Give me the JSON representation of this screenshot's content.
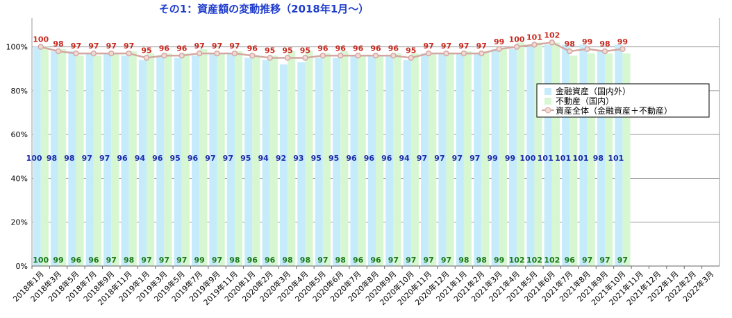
{
  "chart_data": {
    "type": "bar",
    "title": "その1：資産額の変動推移（2018年1月〜）",
    "ylim": [
      0,
      110
    ],
    "ytick_values": [
      0,
      20,
      40,
      60,
      80,
      100
    ],
    "ytick_labels": [
      "0%",
      "20%",
      "40%",
      "60%",
      "80%",
      "100%"
    ],
    "grid": true,
    "legend_position": "right",
    "categories": [
      "2018年1月",
      "2018年3月",
      "2018年5月",
      "2018年7月",
      "2018年9月",
      "2018年11月",
      "2019年1月",
      "2019年3月",
      "2019年5月",
      "2019年7月",
      "2019年9月",
      "2019年11月",
      "2020年1月",
      "2020年2月",
      "2020年3月",
      "2020年4月",
      "2020年5月",
      "2020年6月",
      "2020年7月",
      "2020年8月",
      "2020年9月",
      "2020年10月",
      "2020年11月",
      "2020年12月",
      "2021年1月",
      "2021年2月",
      "2021年3月",
      "2021年4月",
      "2021年5月",
      "2021年6月",
      "2021年7月",
      "2021年8月",
      "2021年9月",
      "2021年10月",
      "2021年11月",
      "2021年12月",
      "2022年1月",
      "2022年2月",
      "2022年3月"
    ],
    "series": [
      {
        "name": "金融資産（国内外）",
        "kind": "bar",
        "color": "#c6ecfb",
        "values": [
          100,
          98,
          98,
          97,
          97,
          96,
          94,
          96,
          95,
          96,
          97,
          97,
          95,
          94,
          92,
          93,
          95,
          95,
          96,
          96,
          96,
          94,
          97,
          97,
          97,
          97,
          99,
          99,
          100,
          101,
          101,
          101,
          98,
          101,
          null,
          null,
          null,
          null,
          null
        ]
      },
      {
        "name": "不動産（国内）",
        "kind": "bar",
        "color": "#d7f7d2",
        "values": [
          100,
          99,
          96,
          96,
          97,
          98,
          97,
          97,
          97,
          99,
          97,
          98,
          96,
          96,
          98,
          98,
          97,
          98,
          96,
          96,
          97,
          97,
          97,
          97,
          98,
          98,
          99,
          102,
          102,
          102,
          96,
          97,
          97,
          97,
          null,
          null,
          null,
          null,
          null
        ]
      },
      {
        "name": "資産全体（金融資産＋不動産）",
        "kind": "line",
        "color": "#d4a7a0",
        "label_color": "#c8281e",
        "values": [
          100,
          98,
          97,
          97,
          97,
          97,
          95,
          96,
          96,
          97,
          97,
          97,
          96,
          95,
          95,
          95,
          96,
          96,
          96,
          96,
          96,
          95,
          97,
          97,
          97,
          97,
          99,
          100,
          101,
          102,
          98,
          99,
          98,
          99,
          null,
          null,
          null,
          null,
          null
        ]
      }
    ]
  }
}
